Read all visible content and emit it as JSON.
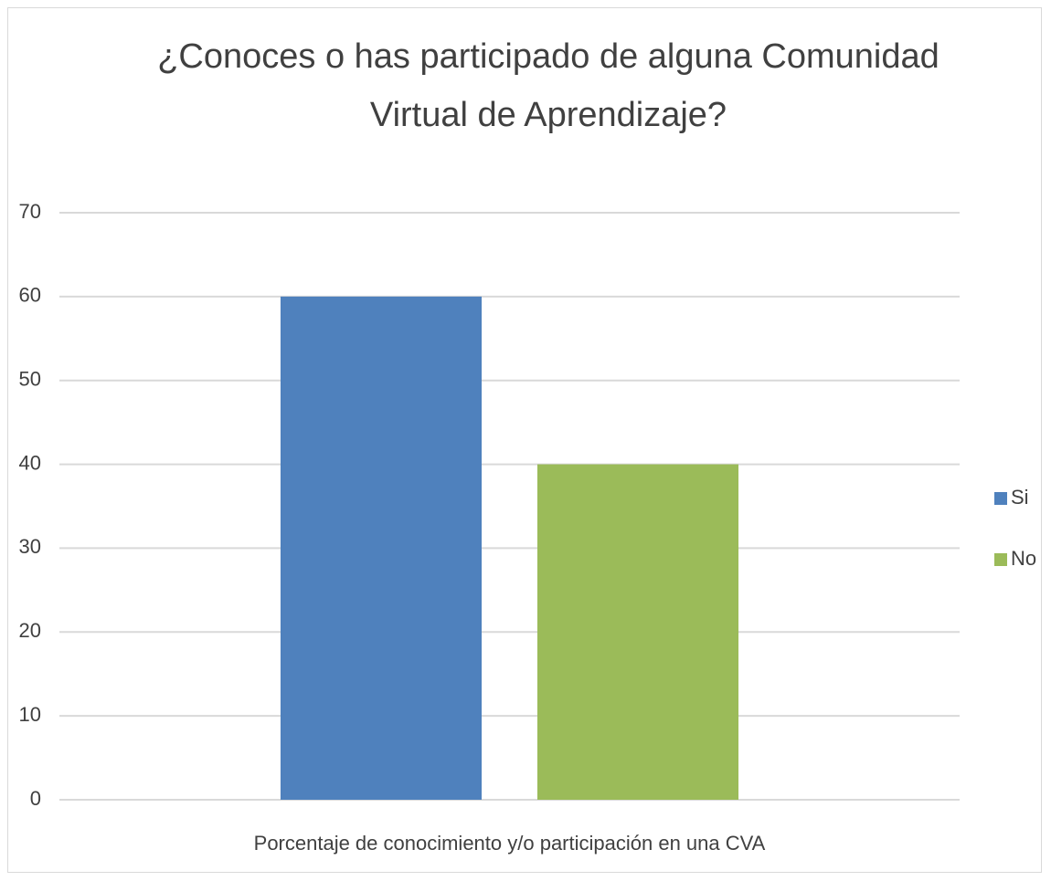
{
  "chart_data": {
    "type": "bar",
    "title": "¿Conoces o has participado de alguna Comunidad Virtual de Aprendizaje?",
    "categories": [
      "Porcentaje de conocimiento y/o participación en una CVA"
    ],
    "series": [
      {
        "name": "Si",
        "color": "#4f81bd",
        "values": [
          60
        ]
      },
      {
        "name": "No",
        "color": "#9bbb59",
        "values": [
          40
        ]
      }
    ],
    "ylim": [
      0,
      70
    ],
    "yticks": [
      0,
      10,
      20,
      30,
      40,
      50,
      60,
      70
    ],
    "grid": true,
    "legend": "right"
  }
}
